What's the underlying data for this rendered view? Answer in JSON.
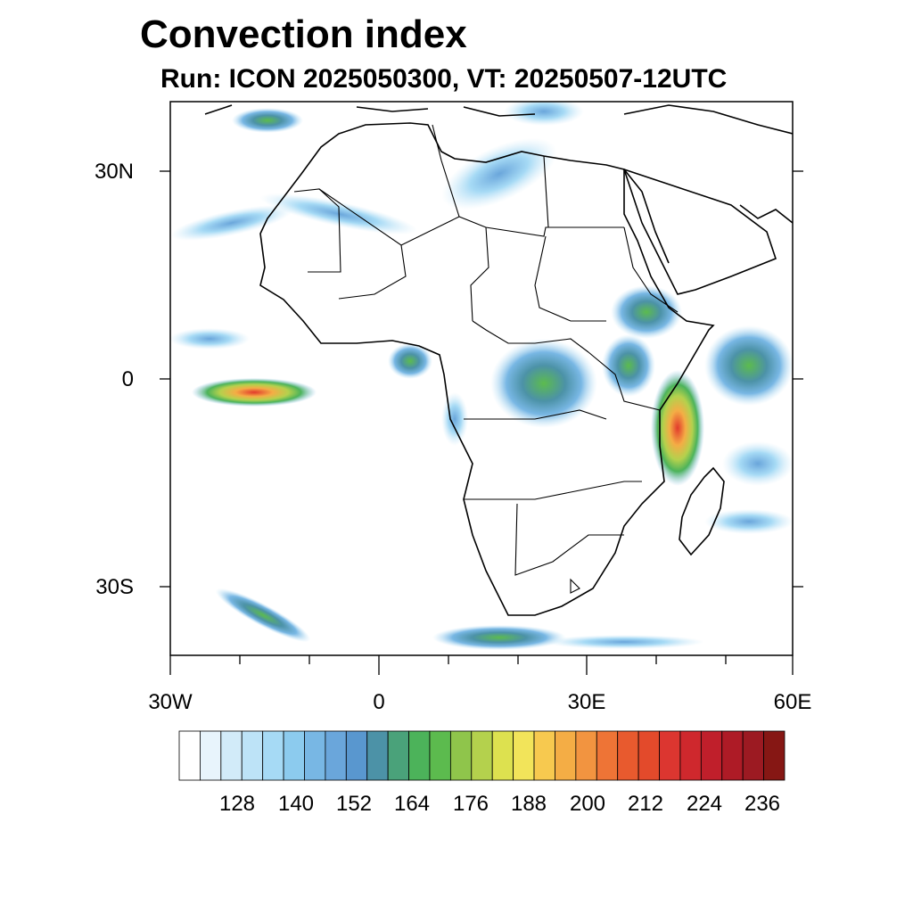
{
  "title": "Convection index",
  "subtitle": "Run: ICON 2025050300,  VT: 20250507-12UTC",
  "axes": {
    "lat_labels": [
      "30N",
      "0",
      "30S"
    ],
    "lon_labels": [
      "30W",
      "0",
      "30E",
      "60E"
    ]
  },
  "colorbar": {
    "labels": [
      "128",
      "140",
      "152",
      "164",
      "176",
      "188",
      "200",
      "212",
      "224",
      "236"
    ],
    "colors": [
      "#ffffff",
      "#e8f4fc",
      "#d2ebf9",
      "#bde3f7",
      "#a6daf5",
      "#8ccbee",
      "#78b7e4",
      "#6aa6db",
      "#5997cf",
      "#4c92a7",
      "#4aa27a",
      "#4cb35a",
      "#5cbb4e",
      "#8fc54b",
      "#b4d14d",
      "#dde14f",
      "#f2e45a",
      "#f7c94f",
      "#f4ad45",
      "#f29440",
      "#ee7436",
      "#e85a2e",
      "#e34a2b",
      "#dc3630",
      "#cf282d",
      "#c01f2b",
      "#ae1b26",
      "#9c1a22",
      "#861714"
    ]
  }
}
